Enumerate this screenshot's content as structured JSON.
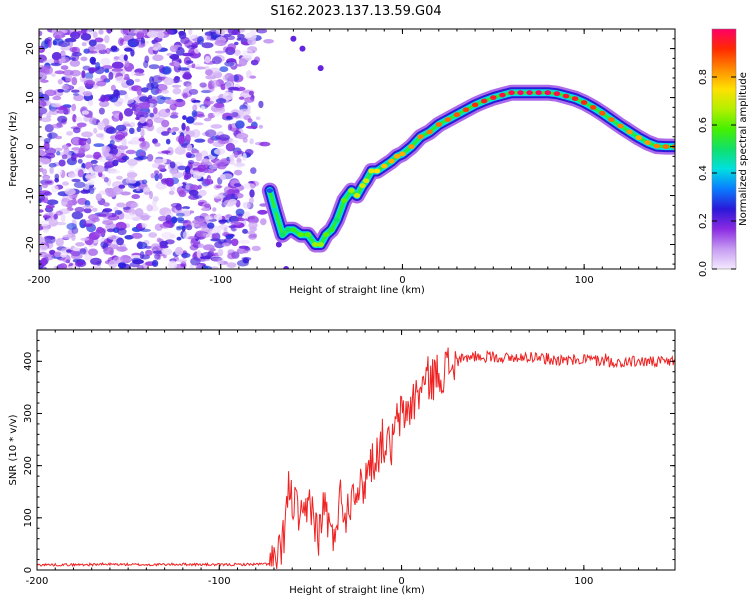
{
  "figure": {
    "title": "S162.2023.137.13.59.G04"
  },
  "chart_data": [
    {
      "type": "heatmap",
      "xlabel": "Height of straight line (km)",
      "ylabel": "Frequency (Hz)",
      "xlim": [
        -200,
        150
      ],
      "ylim": [
        -25,
        24
      ],
      "xticks": [
        "-200",
        "-100",
        "0",
        "100"
      ],
      "xtick_values": [
        -200,
        -100,
        0,
        100
      ],
      "yticks": [
        "-20",
        "-10",
        "0",
        "10",
        "20"
      ],
      "ytick_values": [
        -20,
        -10,
        0,
        10,
        20
      ],
      "grid": false,
      "colorbar": {
        "label": "Normalized spectral amplitude",
        "range": [
          0,
          1
        ],
        "ticks": [
          "0.0",
          "0.2",
          "0.4",
          "0.6",
          "0.8"
        ],
        "tick_values": [
          0.0,
          0.2,
          0.4,
          0.6,
          0.8
        ],
        "colors": [
          "#f4eaff",
          "#c79cf2",
          "#8a2be2",
          "#2a19d8",
          "#0a7cff",
          "#00e0e0",
          "#10e06a",
          "#46f000",
          "#b4f000",
          "#ffe000",
          "#ff8a00",
          "#ff2a00",
          "#ff0066"
        ]
      },
      "noise_region_x": [
        -200,
        -73
      ],
      "ridge": {
        "x": [
          -73,
          -70,
          -66,
          -63,
          -60,
          -56,
          -52,
          -48,
          -45,
          -42,
          -39,
          -36,
          -32,
          -28,
          -25,
          -22,
          -20,
          -17,
          -14,
          -10,
          -6,
          -3,
          0,
          5,
          10,
          15,
          20,
          25,
          30,
          35,
          40,
          45,
          50,
          55,
          60,
          65,
          70,
          75,
          80,
          85,
          90,
          95,
          100,
          105,
          110,
          115,
          120,
          125,
          130,
          135,
          140,
          145,
          150
        ],
        "y": [
          -9,
          -13,
          -18,
          -17,
          -17,
          -18,
          -18,
          -20,
          -20,
          -18,
          -17,
          -15,
          -11,
          -9,
          -10,
          -8,
          -7,
          -5,
          -5,
          -4,
          -3,
          -2,
          -1.5,
          0,
          2,
          3,
          4.5,
          5.5,
          6.5,
          7.5,
          8.5,
          9.3,
          10,
          10.5,
          11,
          11,
          11,
          11,
          11,
          10.8,
          10.3,
          9.8,
          9,
          8,
          6.8,
          5.5,
          4.2,
          3,
          1.8,
          0.8,
          0.1,
          0,
          0
        ],
        "amplitude": [
          0.3,
          0.45,
          0.5,
          0.5,
          0.55,
          0.6,
          0.6,
          0.65,
          0.65,
          0.6,
          0.55,
          0.5,
          0.6,
          0.65,
          0.7,
          0.7,
          0.7,
          0.72,
          0.75,
          0.78,
          0.8,
          0.8,
          0.8,
          0.82,
          0.84,
          0.85,
          0.86,
          0.86,
          0.88,
          0.9,
          0.92,
          0.94,
          0.95,
          0.97,
          0.98,
          1.0,
          1.0,
          1.0,
          1.0,
          0.98,
          0.96,
          0.95,
          0.93,
          0.9,
          0.88,
          0.86,
          0.84,
          0.82,
          0.8,
          0.82,
          0.84,
          0.86,
          0.88
        ]
      }
    },
    {
      "type": "line",
      "xlabel": "Height of straight line (km)",
      "ylabel": "SNR (10 * v/v)",
      "xlim": [
        -200,
        150
      ],
      "ylim": [
        0,
        460
      ],
      "xticks": [
        "-200",
        "-100",
        "0",
        "100"
      ],
      "xtick_values": [
        -200,
        -100,
        0,
        100
      ],
      "yticks": [
        "0",
        "100",
        "200",
        "300",
        "400"
      ],
      "ytick_values": [
        0,
        100,
        200,
        300,
        400
      ],
      "grid": false,
      "color": "#ee2222",
      "series": [
        {
          "x": [
            -200,
            -180,
            -160,
            -140,
            -120,
            -100,
            -80,
            -70,
            -66,
            -62,
            -58,
            -54,
            -50,
            -46,
            -42,
            -38,
            -34,
            -30,
            -26,
            -22,
            -18,
            -14,
            -10,
            -6,
            -2,
            2,
            6,
            10,
            14,
            18,
            22,
            26,
            30,
            35,
            40,
            45,
            50,
            60,
            70,
            80,
            90,
            100,
            110,
            120,
            130,
            140,
            150
          ],
          "y": [
            10,
            10,
            11,
            10,
            11,
            10,
            11,
            12,
            30,
            150,
            120,
            80,
            140,
            60,
            130,
            50,
            140,
            110,
            170,
            150,
            200,
            220,
            250,
            230,
            290,
            300,
            320,
            345,
            365,
            370,
            380,
            390,
            400,
            405,
            410,
            408,
            410,
            405,
            410,
            405,
            400,
            405,
            400,
            398,
            400,
            398,
            400
          ]
        }
      ]
    }
  ]
}
